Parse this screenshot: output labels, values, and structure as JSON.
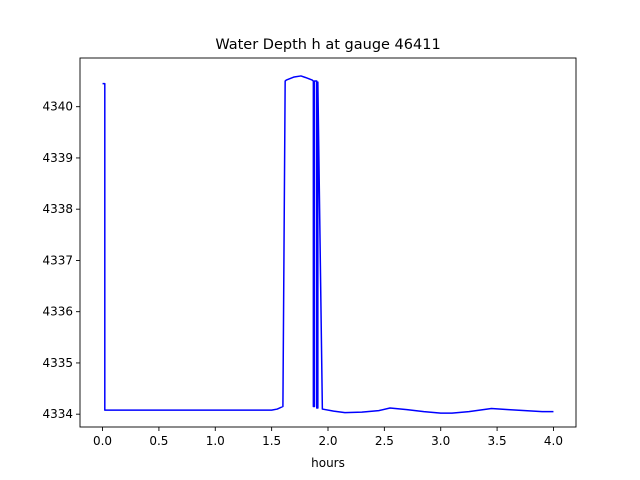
{
  "chart_data": {
    "type": "line",
    "title": "Water Depth h at gauge 46411",
    "xlabel": "hours",
    "ylabel": "",
    "xlim": [
      -0.2,
      4.2
    ],
    "ylim": [
      4333.75,
      4340.95
    ],
    "xticks": [
      0.0,
      0.5,
      1.0,
      1.5,
      2.0,
      2.5,
      3.0,
      3.5,
      4.0
    ],
    "xtick_labels": [
      "0.0",
      "0.5",
      "1.0",
      "1.5",
      "2.0",
      "2.5",
      "3.0",
      "3.5",
      "4.0"
    ],
    "yticks": [
      4334,
      4335,
      4336,
      4337,
      4338,
      4339,
      4340
    ],
    "ytick_labels": [
      "4334",
      "4335",
      "4336",
      "4337",
      "4338",
      "4339",
      "4340"
    ],
    "grid": false,
    "series": [
      {
        "color": "#0000ff",
        "x": [
          0.0,
          0.02,
          0.02,
          0.03,
          0.3,
          0.6,
          0.9,
          1.2,
          1.5,
          1.55,
          1.6,
          1.62,
          1.63,
          1.7,
          1.76,
          1.8,
          1.86,
          1.87,
          1.87,
          1.88,
          1.88,
          1.9,
          1.9,
          1.91,
          1.91,
          1.95,
          2.05,
          2.15,
          2.3,
          2.45,
          2.55,
          2.7,
          2.85,
          3.0,
          3.1,
          3.25,
          3.45,
          3.6,
          3.75,
          3.9,
          4.0
        ],
        "y": [
          4340.45,
          4340.45,
          4334.08,
          4334.08,
          4334.08,
          4334.08,
          4334.08,
          4334.08,
          4334.08,
          4334.1,
          4334.15,
          4340.5,
          4340.52,
          4340.58,
          4340.6,
          4340.57,
          4340.52,
          4340.5,
          4334.15,
          4334.15,
          4340.5,
          4340.5,
          4334.12,
          4334.12,
          4340.48,
          4334.1,
          4334.06,
          4334.03,
          4334.04,
          4334.07,
          4334.12,
          4334.09,
          4334.05,
          4334.02,
          4334.02,
          4334.05,
          4334.11,
          4334.09,
          4334.07,
          4334.05,
          4334.05
        ]
      }
    ]
  }
}
